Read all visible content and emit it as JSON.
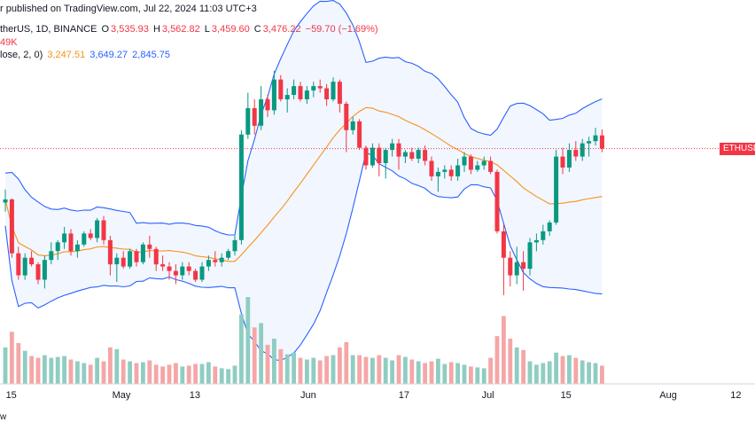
{
  "header": {
    "published": "r published on TradingView.com, Jul 22, 2024 11:03 UTC+3",
    "symbol": "therUS, 1D, BINANCE",
    "o_label": "O",
    "o": "3,535.93",
    "h_label": "H",
    "h": "3,562.82",
    "l_label": "L",
    "l": "3,459.60",
    "c_label": "C",
    "c": "3,476.22",
    "change": "−59.70 (−1.69%)",
    "volume": "49K",
    "bb_label": "lose, 2, 0)",
    "bb_basis": "3,247.51",
    "bb_upper": "3,649.27",
    "bb_lower": "2,845.75"
  },
  "price_tag": "ETHUSD",
  "footer_text": "w",
  "colors": {
    "up": "#089981",
    "down": "#f23645",
    "vol_up": "#8fcdc2",
    "vol_down": "#f5a6a6",
    "basis": "#f7931a",
    "band": "#2962ff",
    "band_fill": "#2962ff"
  },
  "chart_data": {
    "type": "candlestick",
    "x_tick_labels": [
      "15",
      "May",
      "13",
      "Jun",
      "17",
      "Jul",
      "15",
      "Aug",
      "12"
    ],
    "last_price": 3476.22,
    "candles": [
      [
        3231,
        3290,
        3190,
        3245,
        420
      ],
      [
        3245,
        3250,
        2980,
        3000,
        600
      ],
      [
        3000,
        3030,
        2880,
        2900,
        470
      ],
      [
        2900,
        3000,
        2880,
        2980,
        380
      ],
      [
        2980,
        3010,
        2940,
        2950,
        320
      ],
      [
        2950,
        2960,
        2860,
        2880,
        300
      ],
      [
        2880,
        2990,
        2840,
        2970,
        330
      ],
      [
        2970,
        3050,
        2950,
        3010,
        300
      ],
      [
        3010,
        3060,
        2970,
        3050,
        310
      ],
      [
        3050,
        3120,
        3020,
        3090,
        320
      ],
      [
        3090,
        3110,
        2990,
        3010,
        280
      ],
      [
        3010,
        3060,
        2980,
        3040,
        260
      ],
      [
        3040,
        3100,
        3030,
        3090,
        240
      ],
      [
        3090,
        3110,
        3060,
        3070,
        220
      ],
      [
        3070,
        3160,
        3050,
        3150,
        300
      ],
      [
        3150,
        3170,
        3040,
        3060,
        260
      ],
      [
        3060,
        3080,
        2900,
        2950,
        420
      ],
      [
        2950,
        3000,
        2870,
        2980,
        400
      ],
      [
        2980,
        3010,
        2930,
        2940,
        280
      ],
      [
        2940,
        3020,
        2930,
        3010,
        260
      ],
      [
        3010,
        3020,
        2940,
        2960,
        240
      ],
      [
        2960,
        3050,
        2950,
        3040,
        250
      ],
      [
        3040,
        3080,
        2980,
        3020,
        270
      ],
      [
        3020,
        3030,
        2920,
        2950,
        220
      ],
      [
        2950,
        2990,
        2920,
        2940,
        200
      ],
      [
        2940,
        2960,
        2880,
        2920,
        220
      ],
      [
        2920,
        2950,
        2860,
        2900,
        240
      ],
      [
        2900,
        2960,
        2880,
        2940,
        200
      ],
      [
        2940,
        2960,
        2900,
        2920,
        210
      ],
      [
        2920,
        2930,
        2870,
        2880,
        230
      ],
      [
        2880,
        2960,
        2870,
        2940,
        230
      ],
      [
        2940,
        2990,
        2920,
        2970,
        250
      ],
      [
        2970,
        3010,
        2940,
        2960,
        200
      ],
      [
        2960,
        3000,
        2940,
        2980,
        180
      ],
      [
        2980,
        3020,
        2970,
        3010,
        170
      ],
      [
        3010,
        3080,
        2990,
        3060,
        210
      ],
      [
        3060,
        3560,
        3040,
        3540,
        800
      ],
      [
        3540,
        3730,
        3520,
        3660,
        1000
      ],
      [
        3660,
        3700,
        3540,
        3580,
        650
      ],
      [
        3580,
        3760,
        3560,
        3700,
        700
      ],
      [
        3700,
        3720,
        3620,
        3650,
        450
      ],
      [
        3650,
        3830,
        3630,
        3790,
        520
      ],
      [
        3790,
        3810,
        3690,
        3700,
        400
      ],
      [
        3700,
        3750,
        3640,
        3720,
        340
      ],
      [
        3720,
        3790,
        3700,
        3760,
        360
      ],
      [
        3760,
        3780,
        3690,
        3700,
        300
      ],
      [
        3700,
        3760,
        3680,
        3740,
        280
      ],
      [
        3740,
        3780,
        3710,
        3760,
        300
      ],
      [
        3760,
        3790,
        3730,
        3750,
        270
      ],
      [
        3750,
        3770,
        3670,
        3700,
        320
      ],
      [
        3700,
        3800,
        3690,
        3780,
        330
      ],
      [
        3780,
        3790,
        3640,
        3680,
        420
      ],
      [
        3680,
        3690,
        3460,
        3560,
        480
      ],
      [
        3560,
        3620,
        3540,
        3600,
        330
      ],
      [
        3600,
        3610,
        3470,
        3480,
        330
      ],
      [
        3480,
        3490,
        3380,
        3400,
        310
      ],
      [
        3400,
        3500,
        3390,
        3480,
        300
      ],
      [
        3480,
        3500,
        3350,
        3410,
        330
      ],
      [
        3410,
        3480,
        3340,
        3470,
        300
      ],
      [
        3470,
        3520,
        3440,
        3500,
        270
      ],
      [
        3500,
        3520,
        3380,
        3440,
        330
      ],
      [
        3440,
        3470,
        3410,
        3460,
        310
      ],
      [
        3460,
        3480,
        3420,
        3430,
        280
      ],
      [
        3430,
        3480,
        3410,
        3470,
        260
      ],
      [
        3470,
        3490,
        3400,
        3420,
        240
      ],
      [
        3420,
        3440,
        3330,
        3350,
        260
      ],
      [
        3350,
        3390,
        3280,
        3370,
        290
      ],
      [
        3370,
        3400,
        3340,
        3380,
        230
      ],
      [
        3380,
        3400,
        3330,
        3350,
        250
      ],
      [
        3350,
        3430,
        3330,
        3400,
        240
      ],
      [
        3400,
        3460,
        3370,
        3440,
        220
      ],
      [
        3440,
        3450,
        3360,
        3380,
        200
      ],
      [
        3380,
        3420,
        3370,
        3400,
        190
      ],
      [
        3400,
        3440,
        3380,
        3420,
        180
      ],
      [
        3420,
        3440,
        3360,
        3370,
        300
      ],
      [
        3370,
        3380,
        3090,
        3100,
        550
      ],
      [
        3100,
        3130,
        2810,
        2980,
        780
      ],
      [
        2980,
        3010,
        2850,
        2900,
        520
      ],
      [
        2900,
        3030,
        2860,
        2960,
        420
      ],
      [
        2960,
        3010,
        2830,
        2930,
        390
      ],
      [
        2930,
        3070,
        2900,
        3050,
        260
      ],
      [
        3050,
        3090,
        3010,
        3060,
        220
      ],
      [
        3060,
        3130,
        3040,
        3100,
        240
      ],
      [
        3100,
        3150,
        3080,
        3140,
        260
      ],
      [
        3140,
        3470,
        3130,
        3440,
        360
      ],
      [
        3440,
        3480,
        3360,
        3390,
        320
      ],
      [
        3390,
        3500,
        3370,
        3470,
        330
      ],
      [
        3470,
        3510,
        3420,
        3440,
        300
      ],
      [
        3440,
        3520,
        3420,
        3500,
        270
      ],
      [
        3500,
        3530,
        3440,
        3510,
        250
      ],
      [
        3510,
        3570,
        3490,
        3536,
        240
      ],
      [
        3536,
        3563,
        3460,
        3476,
        210
      ]
    ],
    "bollinger": {
      "length": 20,
      "mult": 2
    }
  }
}
